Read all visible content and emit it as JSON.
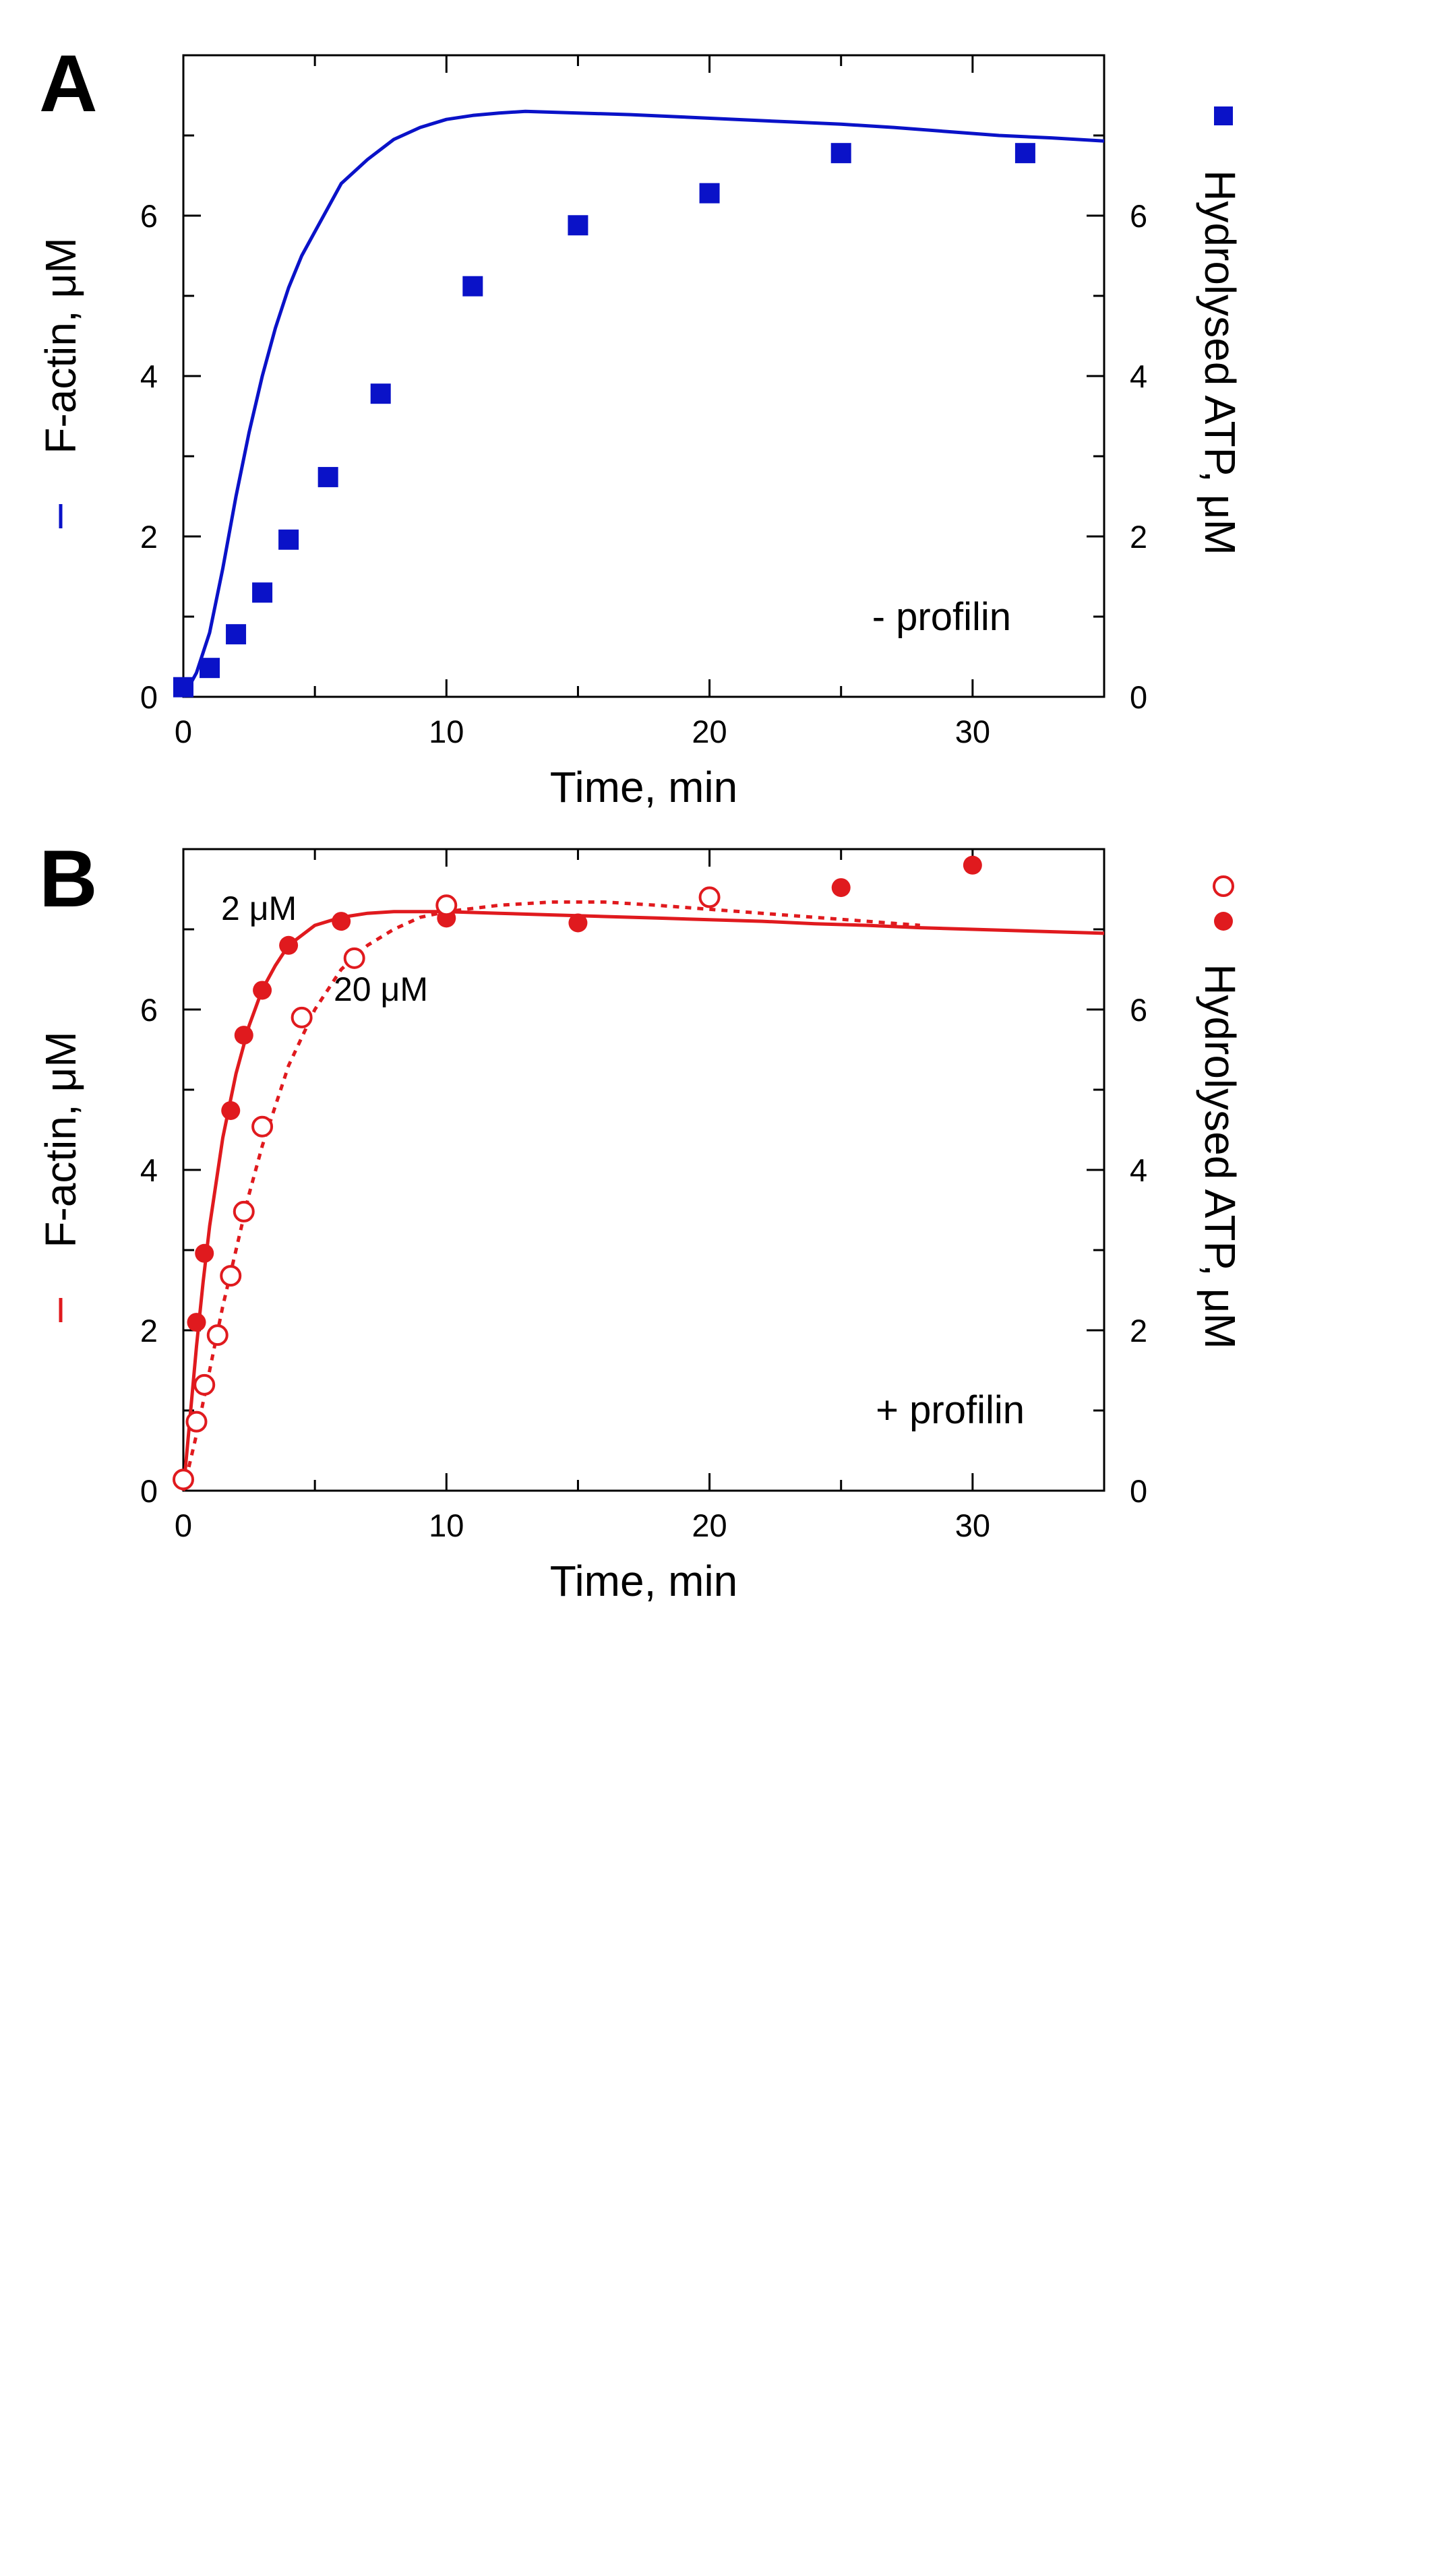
{
  "chart_data": [
    {
      "panel": "A",
      "type": "line",
      "xlabel": "Time, min",
      "ylabel_left": "F-actin, μM",
      "ylabel_right": "Hydrolysed ATP, μM",
      "xlim": [
        0,
        35
      ],
      "ylim_left": [
        0,
        8
      ],
      "ylim_right": [
        0,
        8
      ],
      "x_ticks": [
        0,
        10,
        20,
        30
      ],
      "y_ticks": [
        0,
        2,
        4,
        6
      ],
      "annotation": "- profilin",
      "color": "#0a12c8",
      "series": [
        {
          "kind": "line",
          "axis": "left",
          "x": [
            0,
            0.5,
            1,
            1.5,
            2,
            2.5,
            3,
            3.5,
            4,
            4.5,
            5,
            5.5,
            6,
            7,
            8,
            9,
            10,
            11,
            12,
            13,
            14,
            15,
            17,
            19,
            21,
            23,
            25,
            27,
            29,
            31,
            33,
            35
          ],
          "y": [
            0,
            0.3,
            0.8,
            1.6,
            2.5,
            3.3,
            4.0,
            4.6,
            5.1,
            5.5,
            5.8,
            6.1,
            6.4,
            6.7,
            6.95,
            7.1,
            7.2,
            7.25,
            7.28,
            7.3,
            7.29,
            7.28,
            7.26,
            7.23,
            7.2,
            7.17,
            7.14,
            7.1,
            7.05,
            7.0,
            6.97,
            6.93
          ]
        },
        {
          "kind": "scatter",
          "axis": "right",
          "marker": "filled-square",
          "x": [
            0,
            1,
            2,
            3,
            4,
            5.5,
            7.5,
            11,
            15,
            20,
            25,
            32
          ],
          "y": [
            0.12,
            0.36,
            0.78,
            1.3,
            1.96,
            2.74,
            3.78,
            5.12,
            5.88,
            6.28,
            6.78,
            6.78
          ]
        }
      ]
    },
    {
      "panel": "B",
      "type": "line",
      "xlabel": "Time, min",
      "ylabel_left": "F-actin, μM",
      "ylabel_right": "Hydrolysed ATP, μM",
      "xlim": [
        0,
        35
      ],
      "ylim_left": [
        0,
        8
      ],
      "ylim_right": [
        0,
        8
      ],
      "x_ticks": [
        0,
        10,
        20,
        30
      ],
      "y_ticks": [
        0,
        2,
        4,
        6
      ],
      "annotation": "+ profilin",
      "color": "#e01a1e",
      "series": [
        {
          "name": "2 μM",
          "kind": "line",
          "style": "solid",
          "axis": "left",
          "x": [
            0,
            0.25,
            0.5,
            0.75,
            1,
            1.5,
            2,
            2.5,
            3,
            3.5,
            4,
            5,
            6,
            7,
            8,
            10,
            12,
            14,
            16,
            18,
            20,
            22,
            24,
            26,
            28,
            30,
            32,
            35
          ],
          "y": [
            0,
            0.9,
            1.8,
            2.6,
            3.3,
            4.4,
            5.2,
            5.8,
            6.25,
            6.55,
            6.8,
            7.05,
            7.15,
            7.2,
            7.22,
            7.22,
            7.2,
            7.18,
            7.16,
            7.14,
            7.12,
            7.1,
            7.07,
            7.05,
            7.02,
            7.0,
            6.98,
            6.95
          ]
        },
        {
          "name": "20 μM",
          "kind": "line",
          "style": "dotted",
          "axis": "left",
          "x": [
            0,
            0.5,
            1,
            1.5,
            2,
            2.5,
            3,
            3.5,
            4,
            5,
            6,
            7,
            8,
            9,
            10,
            12,
            14,
            16,
            18,
            20,
            22,
            24,
            26,
            28
          ],
          "y": [
            0,
            0.7,
            1.5,
            2.3,
            3.0,
            3.7,
            4.3,
            4.8,
            5.3,
            6.0,
            6.5,
            6.8,
            7.0,
            7.15,
            7.22,
            7.3,
            7.34,
            7.34,
            7.3,
            7.25,
            7.2,
            7.15,
            7.1,
            7.05
          ]
        },
        {
          "name": "2 μM",
          "kind": "scatter",
          "axis": "right",
          "marker": "filled-circle",
          "x": [
            0.5,
            0.8,
            1.8,
            2.3,
            3,
            4,
            6,
            10,
            15,
            25,
            30
          ],
          "y": [
            2.1,
            2.96,
            4.74,
            5.68,
            6.24,
            6.8,
            7.1,
            7.14,
            7.08,
            7.52,
            7.8
          ]
        },
        {
          "name": "20 μM",
          "kind": "scatter",
          "axis": "right",
          "marker": "open-circle",
          "x": [
            0,
            0.5,
            0.8,
            1.3,
            1.8,
            2.3,
            3,
            4.5,
            6.5,
            10,
            20
          ],
          "y": [
            0.14,
            0.86,
            1.32,
            1.94,
            2.68,
            3.48,
            4.54,
            5.9,
            6.64,
            7.3,
            7.4
          ]
        }
      ]
    }
  ]
}
